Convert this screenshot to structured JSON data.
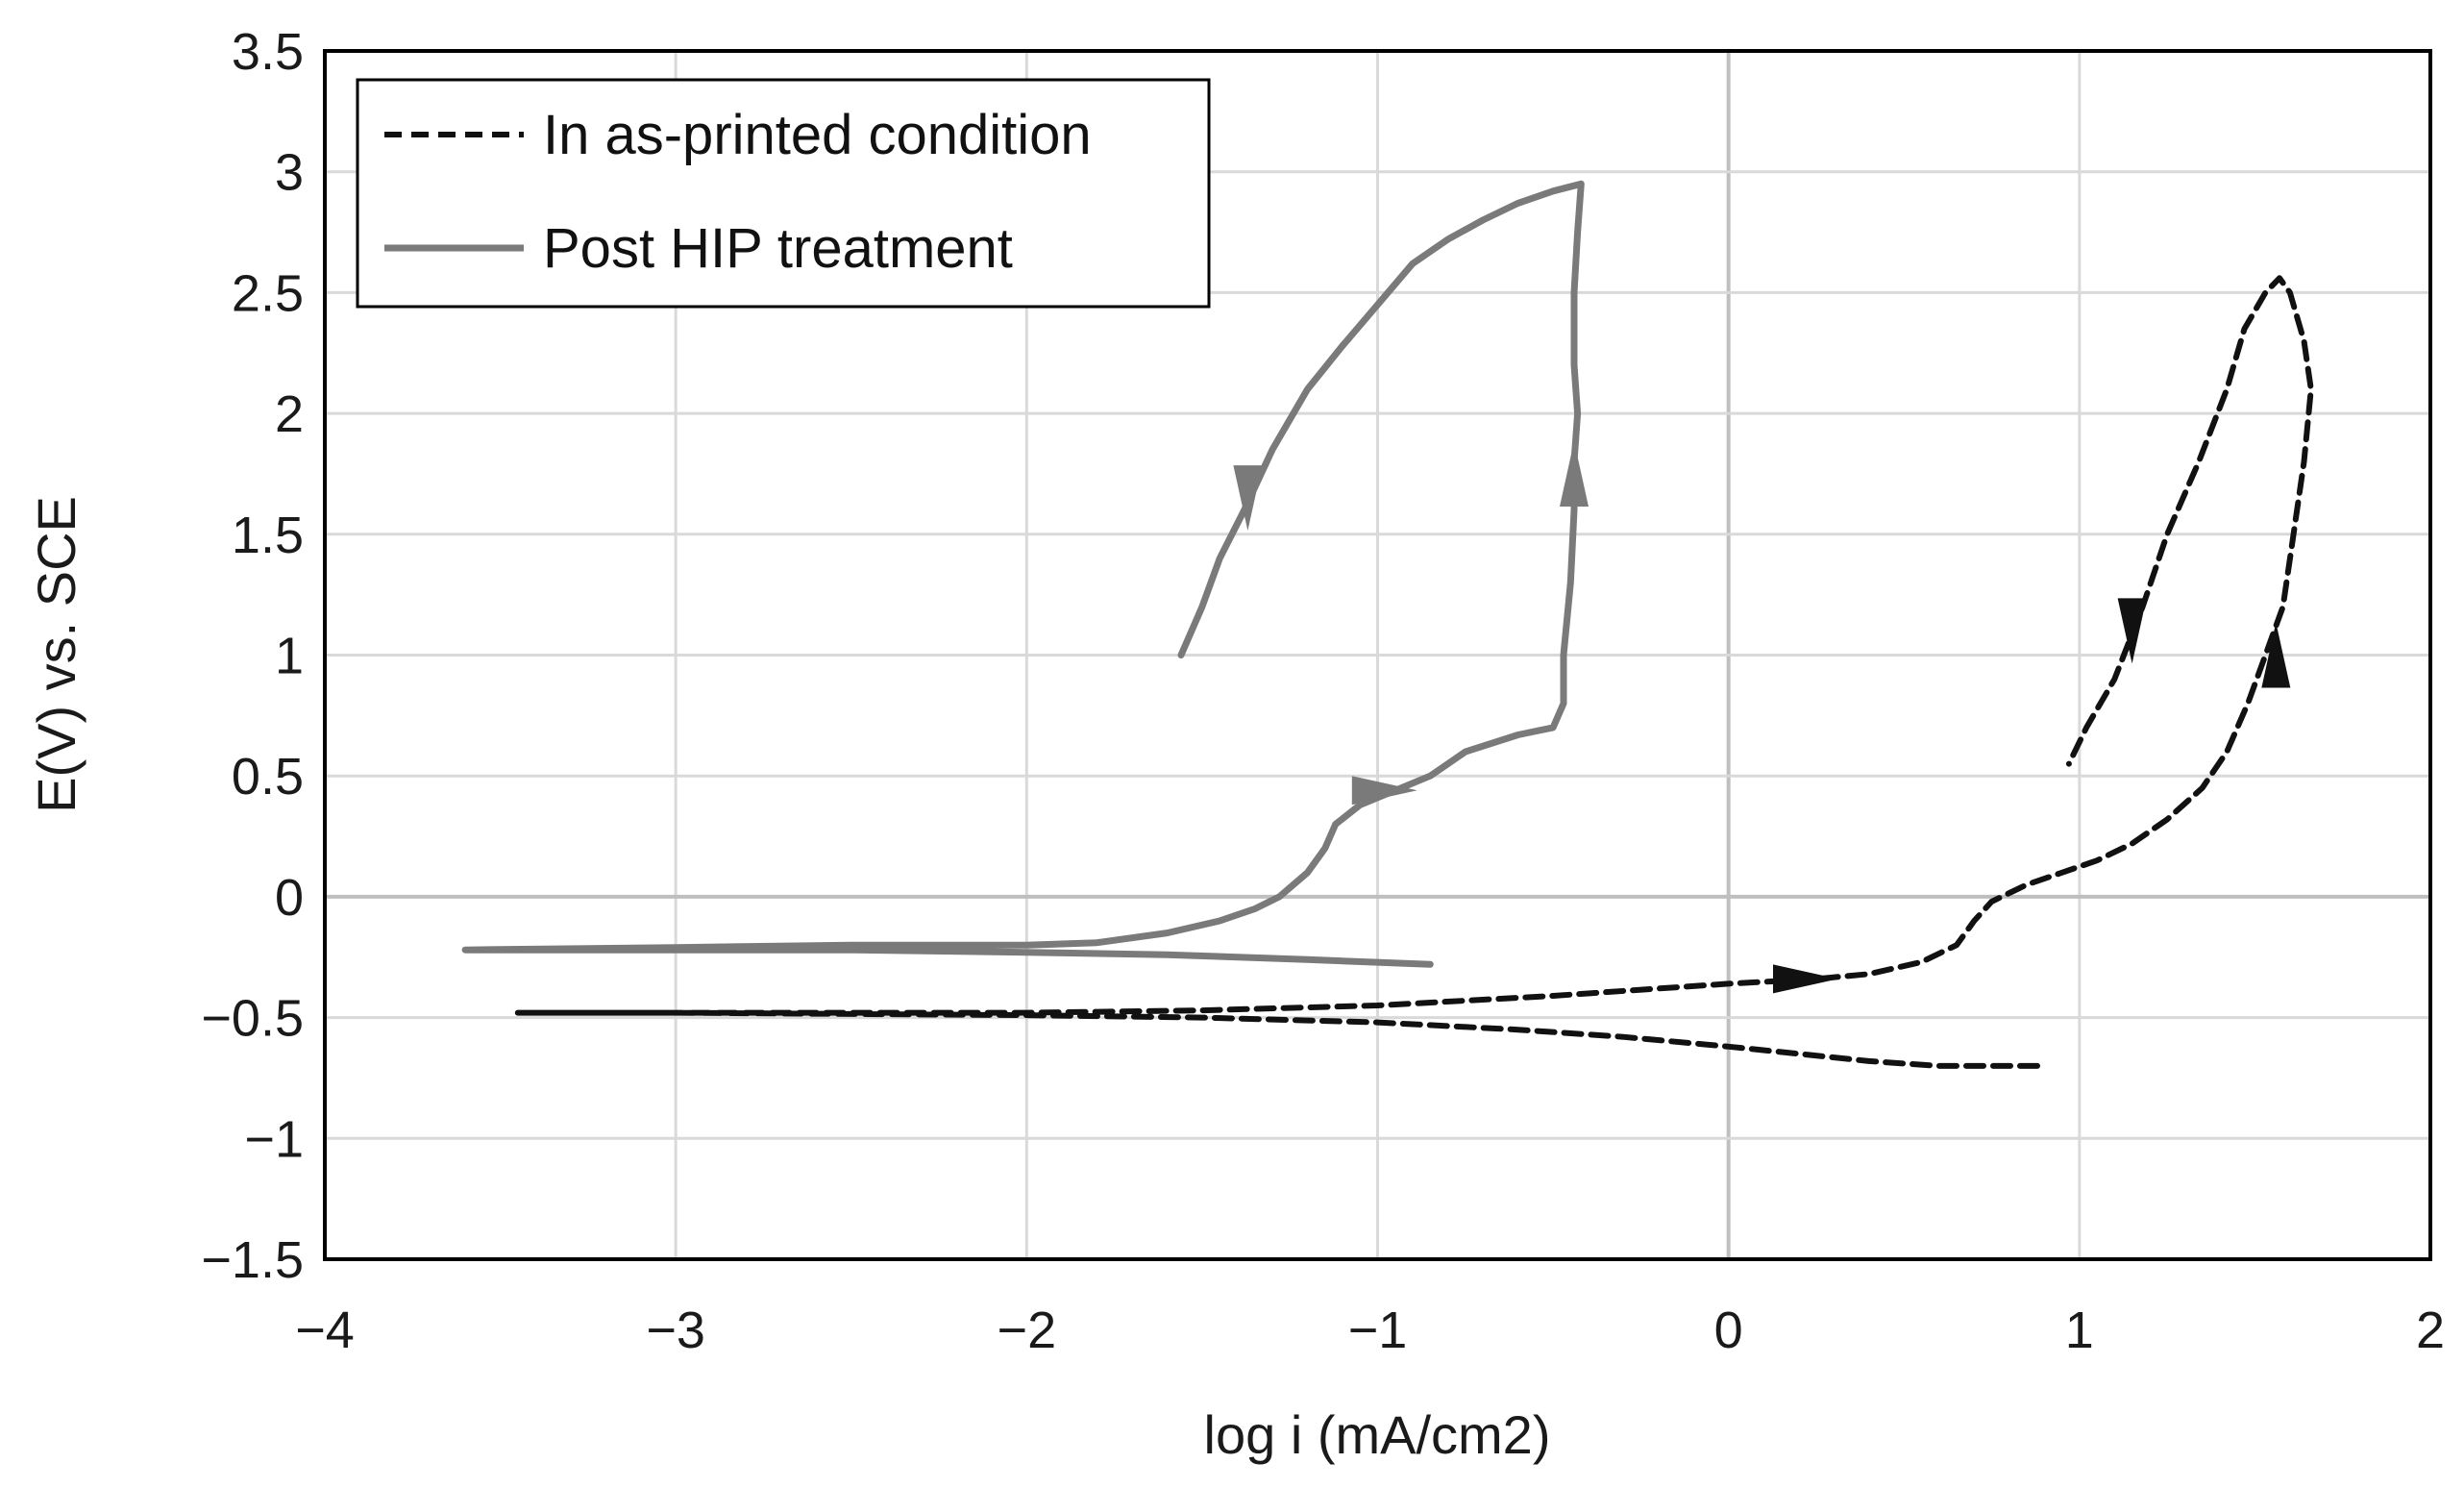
{
  "chart_data": {
    "type": "line",
    "title": "",
    "xlabel": "log i (mA/cm2)",
    "ylabel": "E(V) vs. SCE",
    "xlim": [
      -4,
      2
    ],
    "ylim": [
      -1.5,
      3.5
    ],
    "xticks": [
      -4,
      -3,
      -2,
      -1,
      0,
      1,
      2
    ],
    "yticks": [
      -1.5,
      -1,
      -0.5,
      0,
      0.5,
      1,
      1.5,
      2,
      2.5,
      3,
      3.5
    ],
    "xtick_labels": [
      "−4",
      "−3",
      "−2",
      "−1",
      "0",
      "1",
      "2"
    ],
    "ytick_labels": [
      "−1.5",
      "−1",
      "−0.5",
      "0",
      "0.5",
      "1",
      "1.5",
      "2",
      "2.5",
      "3",
      "3.5"
    ],
    "grid": true,
    "legend_position": "top-left",
    "colors": {
      "as_printed": "#111111",
      "post_hip": "#7a7a7a",
      "grid": "#d9d9d9",
      "zero_axis": "#bfbfbf",
      "frame": "#000000"
    },
    "series": [
      {
        "name": "In as-printed condition",
        "style": "dashed",
        "points": [
          [
            0.88,
            -0.7
          ],
          [
            0.6,
            -0.7
          ],
          [
            0.4,
            -0.68
          ],
          [
            0.2,
            -0.65
          ],
          [
            0.0,
            -0.62
          ],
          [
            -0.3,
            -0.58
          ],
          [
            -0.6,
            -0.55
          ],
          [
            -1.0,
            -0.52
          ],
          [
            -1.5,
            -0.5
          ],
          [
            -2.0,
            -0.49
          ],
          [
            -3.0,
            -0.48
          ],
          [
            -3.45,
            -0.48
          ],
          [
            -3.0,
            -0.48
          ],
          [
            -2.5,
            -0.48
          ],
          [
            -2.0,
            -0.48
          ],
          [
            -1.5,
            -0.47
          ],
          [
            -1.0,
            -0.45
          ],
          [
            -0.5,
            -0.41
          ],
          [
            -0.2,
            -0.38
          ],
          [
            0.0,
            -0.36
          ],
          [
            0.25,
            -0.34
          ],
          [
            0.4,
            -0.32
          ],
          [
            0.55,
            -0.27
          ],
          [
            0.65,
            -0.2
          ],
          [
            0.7,
            -0.1
          ],
          [
            0.75,
            -0.02
          ],
          [
            0.85,
            0.05
          ],
          [
            0.95,
            0.1
          ],
          [
            1.05,
            0.15
          ],
          [
            1.15,
            0.22
          ],
          [
            1.25,
            0.32
          ],
          [
            1.35,
            0.45
          ],
          [
            1.42,
            0.6
          ],
          [
            1.48,
            0.8
          ],
          [
            1.53,
            1.0
          ],
          [
            1.58,
            1.2
          ],
          [
            1.61,
            1.5
          ],
          [
            1.64,
            1.8
          ],
          [
            1.66,
            2.1
          ],
          [
            1.64,
            2.3
          ],
          [
            1.6,
            2.5
          ],
          [
            1.57,
            2.56
          ],
          [
            1.53,
            2.5
          ],
          [
            1.47,
            2.35
          ],
          [
            1.42,
            2.1
          ],
          [
            1.34,
            1.8
          ],
          [
            1.25,
            1.5
          ],
          [
            1.18,
            1.2
          ],
          [
            1.1,
            0.9
          ],
          [
            1.02,
            0.7
          ],
          [
            0.97,
            0.55
          ]
        ],
        "arrows": [
          {
            "x": 0.22,
            "y": -0.34,
            "dir": "right"
          },
          {
            "x": 1.15,
            "y": 1.1,
            "dir": "down"
          },
          {
            "x": 1.56,
            "y": 1.0,
            "dir": "up"
          }
        ]
      },
      {
        "name": "Post HIP treatment",
        "style": "solid",
        "points": [
          [
            -0.85,
            -0.28
          ],
          [
            -1.2,
            -0.26
          ],
          [
            -1.6,
            -0.24
          ],
          [
            -2.0,
            -0.23
          ],
          [
            -2.5,
            -0.22
          ],
          [
            -3.0,
            -0.22
          ],
          [
            -3.6,
            -0.22
          ],
          [
            -3.0,
            -0.21
          ],
          [
            -2.5,
            -0.2
          ],
          [
            -2.2,
            -0.2
          ],
          [
            -2.0,
            -0.2
          ],
          [
            -1.8,
            -0.19
          ],
          [
            -1.6,
            -0.15
          ],
          [
            -1.45,
            -0.1
          ],
          [
            -1.35,
            -0.05
          ],
          [
            -1.28,
            0.0
          ],
          [
            -1.2,
            0.1
          ],
          [
            -1.15,
            0.2
          ],
          [
            -1.12,
            0.3
          ],
          [
            -1.05,
            0.38
          ],
          [
            -0.95,
            0.44
          ],
          [
            -0.85,
            0.5
          ],
          [
            -0.75,
            0.6
          ],
          [
            -0.6,
            0.67
          ],
          [
            -0.5,
            0.7
          ],
          [
            -0.47,
            0.8
          ],
          [
            -0.47,
            1.0
          ],
          [
            -0.45,
            1.3
          ],
          [
            -0.44,
            1.6
          ],
          [
            -0.44,
            1.8
          ],
          [
            -0.43,
            2.0
          ],
          [
            -0.44,
            2.2
          ],
          [
            -0.44,
            2.5
          ],
          [
            -0.43,
            2.75
          ],
          [
            -0.42,
            2.95
          ],
          [
            -0.5,
            2.92
          ],
          [
            -0.6,
            2.87
          ],
          [
            -0.7,
            2.8
          ],
          [
            -0.8,
            2.72
          ],
          [
            -0.9,
            2.62
          ],
          [
            -1.0,
            2.45
          ],
          [
            -1.1,
            2.28
          ],
          [
            -1.2,
            2.1
          ],
          [
            -1.3,
            1.85
          ],
          [
            -1.38,
            1.6
          ],
          [
            -1.45,
            1.4
          ],
          [
            -1.5,
            1.2
          ],
          [
            -1.56,
            1.0
          ]
        ],
        "arrows": [
          {
            "x": -1.37,
            "y": 1.65,
            "dir": "down"
          },
          {
            "x": -0.44,
            "y": 1.75,
            "dir": "up"
          },
          {
            "x": -0.98,
            "y": 0.44,
            "dir": "right"
          }
        ]
      }
    ]
  }
}
